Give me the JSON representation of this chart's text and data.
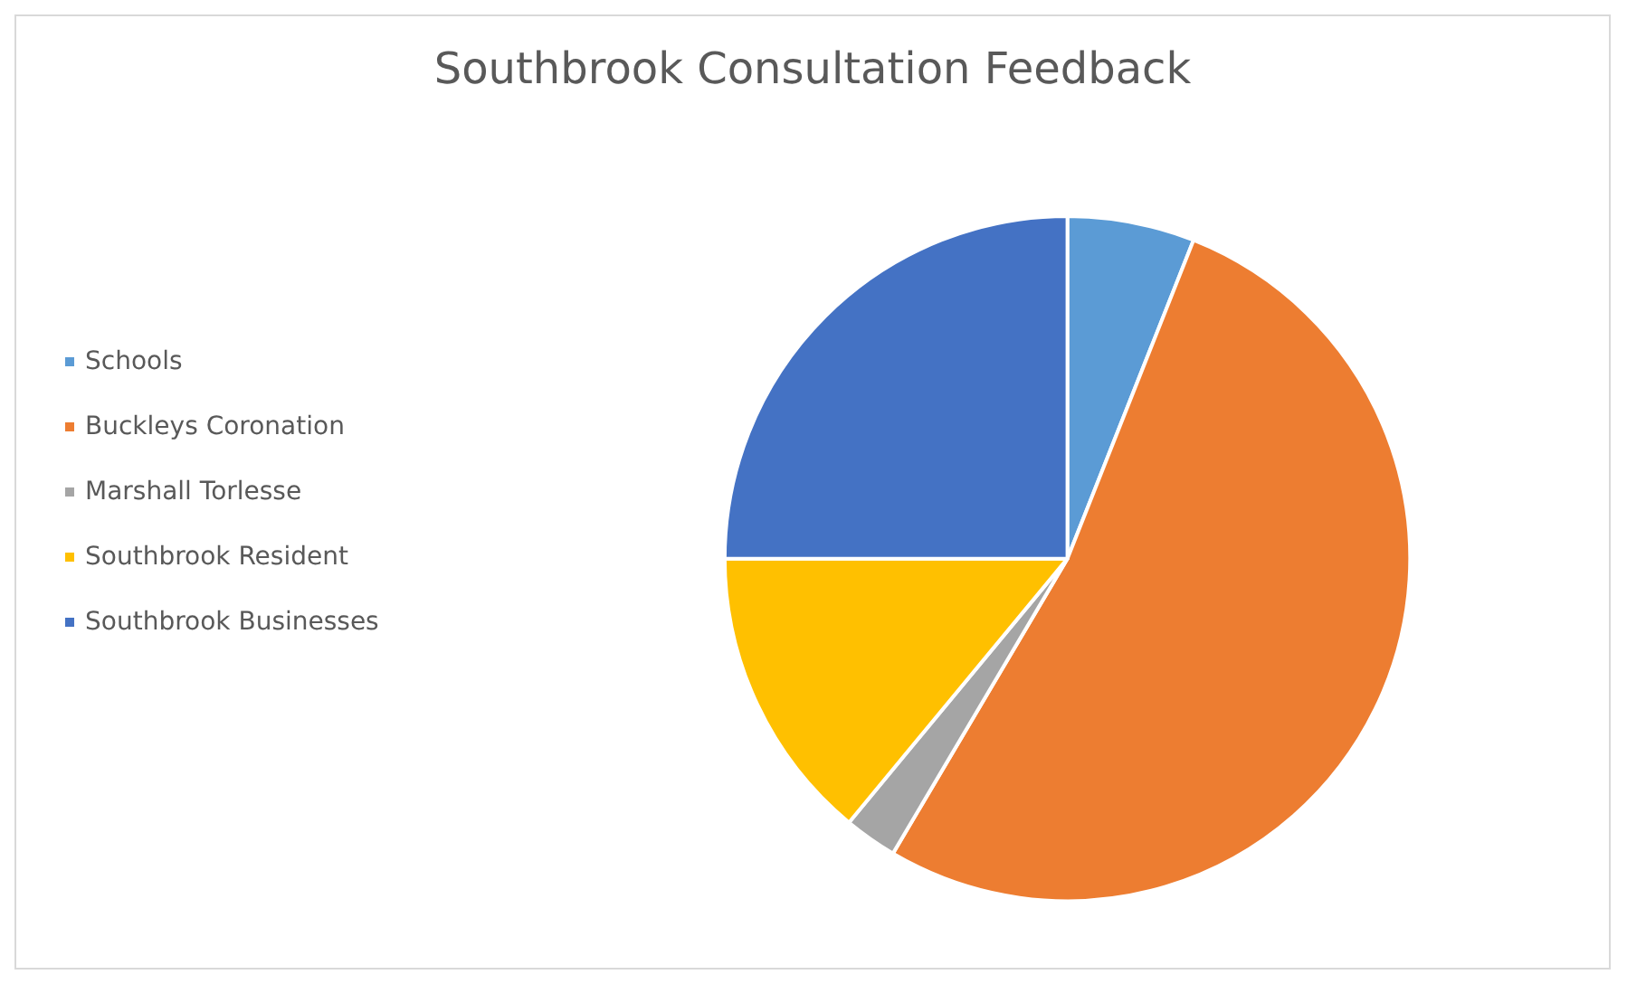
{
  "chart_data": {
    "type": "pie",
    "title": "Southbrook Consultation Feedback",
    "categories": [
      "Schools",
      "Buckleys Coronation",
      "Marshall Torlesse",
      "Southbrook Resident",
      "Southbrook Businesses"
    ],
    "values": [
      6,
      52.5,
      2.5,
      14,
      25
    ],
    "colors": [
      "#5b9bd5",
      "#ed7d31",
      "#a5a5a5",
      "#ffc000",
      "#4472c4"
    ],
    "legend": "left"
  }
}
